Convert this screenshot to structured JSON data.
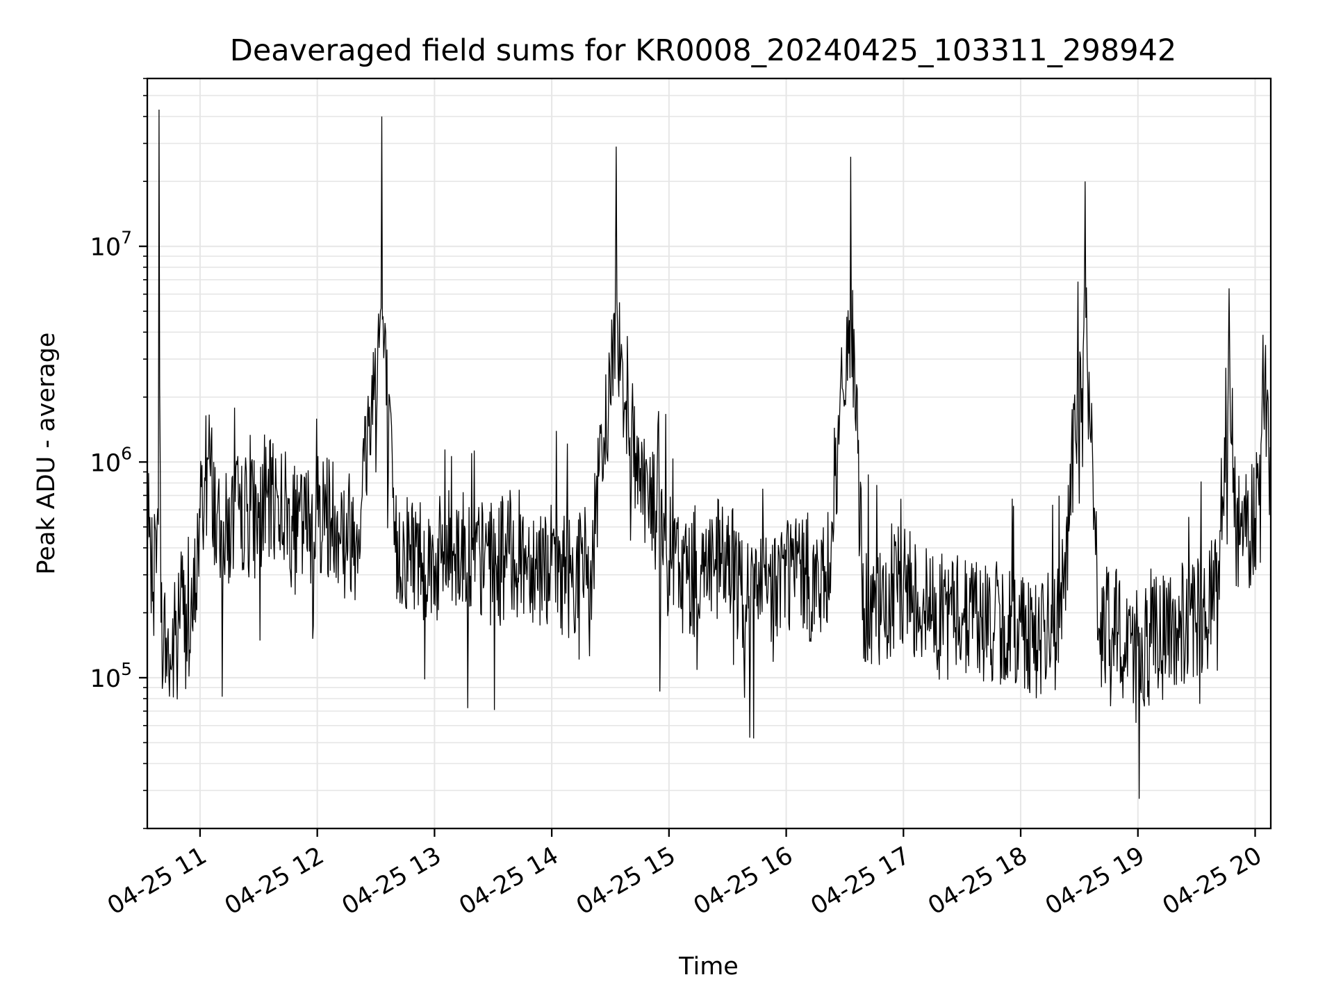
{
  "chart_data": {
    "type": "line",
    "title": "Deaveraged field sums for KR0008_20240425_103311_298942",
    "xlabel": "Time",
    "ylabel": "Peak ADU - average",
    "yscale": "log",
    "grid": true,
    "legend": "none",
    "line_color": "#000000",
    "grid_color": "#e6e6e6",
    "xlim": [
      "2024-04-25 10:33",
      "2024-04-25 20:08"
    ],
    "ylim": [
      20000,
      60000000
    ],
    "x_ticks": [
      "04-25 11",
      "04-25 12",
      "04-25 13",
      "04-25 14",
      "04-25 15",
      "04-25 16",
      "04-25 17",
      "04-25 18",
      "04-25 19",
      "04-25 20"
    ],
    "y_ticks": [
      {
        "value": 100000,
        "base": "10",
        "exp": "5"
      },
      {
        "value": 1000000,
        "base": "10",
        "exp": "6"
      },
      {
        "value": 10000000,
        "base": "10",
        "exp": "7"
      }
    ],
    "series": [
      {
        "points": [
          [
            "2024-04-25 10:33",
            420000
          ],
          [
            "2024-04-25 10:36",
            250000
          ],
          [
            "2024-04-25 10:38",
            520000
          ],
          [
            "2024-04-25 10:39",
            43000000
          ],
          [
            "2024-04-25 10:40",
            180000
          ],
          [
            "2024-04-25 10:45",
            110000
          ],
          [
            "2024-04-25 10:50",
            250000
          ],
          [
            "2024-04-25 10:55",
            130000
          ],
          [
            "2024-04-25 11:00",
            550000
          ],
          [
            "2024-04-25 11:05",
            1000000
          ],
          [
            "2024-04-25 11:10",
            400000
          ],
          [
            "2024-04-25 11:20",
            600000
          ],
          [
            "2024-04-25 11:30",
            550000
          ],
          [
            "2024-04-25 11:40",
            700000
          ],
          [
            "2024-04-25 11:50",
            450000
          ],
          [
            "2024-04-25 12:00",
            600000
          ],
          [
            "2024-04-25 12:10",
            550000
          ],
          [
            "2024-04-25 12:20",
            450000
          ],
          [
            "2024-04-25 12:33",
            40000000
          ],
          [
            "2024-04-25 12:40",
            380000
          ],
          [
            "2024-04-25 12:50",
            400000
          ],
          [
            "2024-04-25 13:00",
            330000
          ],
          [
            "2024-04-25 13:10",
            420000
          ],
          [
            "2024-04-25 13:20",
            350000
          ],
          [
            "2024-04-25 13:30",
            330000
          ],
          [
            "2024-04-25 13:40",
            380000
          ],
          [
            "2024-04-25 13:50",
            360000
          ],
          [
            "2024-04-25 14:00",
            330000
          ],
          [
            "2024-04-25 14:10",
            300000
          ],
          [
            "2024-04-25 14:20",
            350000
          ],
          [
            "2024-04-25 14:27",
            1200000
          ],
          [
            "2024-04-25 14:33",
            29000000
          ],
          [
            "2024-04-25 14:40",
            1300000
          ],
          [
            "2024-04-25 14:50",
            700000
          ],
          [
            "2024-04-25 15:00",
            350000
          ],
          [
            "2024-04-25 15:10",
            300000
          ],
          [
            "2024-04-25 15:20",
            350000
          ],
          [
            "2024-04-25 15:30",
            330000
          ],
          [
            "2024-04-25 15:40",
            250000
          ],
          [
            "2024-04-25 15:50",
            240000
          ],
          [
            "2024-04-25 16:00",
            330000
          ],
          [
            "2024-04-25 16:10",
            300000
          ],
          [
            "2024-04-25 16:20",
            250000
          ],
          [
            "2024-04-25 16:33",
            26000000
          ],
          [
            "2024-04-25 16:40",
            210000
          ],
          [
            "2024-04-25 16:50",
            190000
          ],
          [
            "2024-04-25 17:00",
            280000
          ],
          [
            "2024-04-25 17:10",
            220000
          ],
          [
            "2024-04-25 17:20",
            190000
          ],
          [
            "2024-04-25 17:30",
            200000
          ],
          [
            "2024-04-25 17:40",
            190000
          ],
          [
            "2024-04-25 17:50",
            170000
          ],
          [
            "2024-04-25 18:00",
            180000
          ],
          [
            "2024-04-25 18:10",
            150000
          ],
          [
            "2024-04-25 18:20",
            170000
          ],
          [
            "2024-04-25 18:33",
            20000000
          ],
          [
            "2024-04-25 18:40",
            170000
          ],
          [
            "2024-04-25 18:50",
            160000
          ],
          [
            "2024-04-25 19:00",
            140000
          ],
          [
            "2024-04-25 19:10",
            150000
          ],
          [
            "2024-04-25 19:20",
            170000
          ],
          [
            "2024-04-25 19:30",
            180000
          ],
          [
            "2024-04-25 19:40",
            250000
          ],
          [
            "2024-04-25 19:47",
            3200000
          ],
          [
            "2024-04-25 19:50",
            500000
          ],
          [
            "2024-04-25 19:55",
            450000
          ],
          [
            "2024-04-25 20:00",
            550000
          ],
          [
            "2024-04-25 20:05",
            2700000
          ],
          [
            "2024-04-25 20:08",
            500000
          ]
        ]
      }
    ]
  }
}
